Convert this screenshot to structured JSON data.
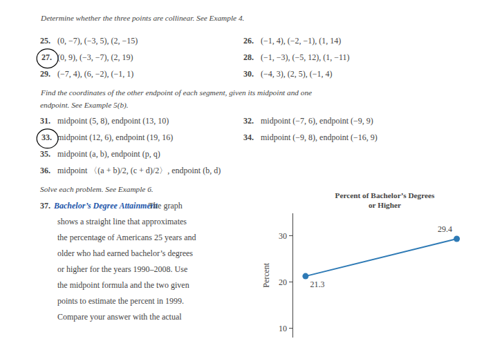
{
  "chart_data": {
    "type": "line",
    "title": "Percent of Bachelor’s Degrees\nor Higher",
    "ylabel": "Percent",
    "categories": [
      null,
      null
    ],
    "values": [
      21.3,
      29.4
    ],
    "color": "#2e7ab5",
    "marker": "circle",
    "ylim": [
      8,
      35
    ],
    "yticks": [
      10,
      20,
      30
    ],
    "grid": false,
    "data_labels": true,
    "tick_labels": "y",
    "annotations": [
      {
        "text": "Determine whether the three points are collinear. See Example 4."
      },
      {
        "text": "25."
      },
      {
        "text": "(0, −7), (−3, 5), (2, −15)"
      },
      {
        "text": "26."
      },
      {
        "text": "(−1, 4), (−2, −1), (1, 14)"
      },
      {
        "text": "27."
      },
      {
        "text": "(0, 9), (−3, −7), (2, 19)"
      },
      {
        "text": "28."
      },
      {
        "text": "(−1, −3), (−5, 12), (1, −11)"
      },
      {
        "text": "29."
      },
      {
        "text": "(−7, 4), (6, −2), (−1, 1)"
      },
      {
        "text": "30."
      },
      {
        "text": "(−4, 3), (2, 5), (−1, 4)"
      },
      {
        "text": "Find the coordinates of the other endpoint of each segment, given its midpoint and one"
      },
      {
        "text": "endpoint. See Example 5(b)."
      },
      {
        "text": "31."
      },
      {
        "text": "midpoint (5, 8), endpoint (13, 10)"
      },
      {
        "text": "32."
      },
      {
        "text": "midpoint (−7, 6), endpoint (−9, 9)"
      },
      {
        "text": "33."
      },
      {
        "text": "midpoint (12, 6), endpoint (19, 16)"
      },
      {
        "text": "34."
      },
      {
        "text": "midpoint (−9, 8), endpoint (−16, 9)"
      },
      {
        "text": "35."
      },
      {
        "text": "midpoint (a, b), endpoint (p, q)"
      },
      {
        "text": "36."
      },
      {
        "text": "midpoint 〈(a + b)/2, (c + d)/2〉, endpoint (b, d)"
      },
      {
        "text": "Solve each problem. See Example 6."
      },
      {
        "text": "37."
      },
      {
        "text": "Bachelor’s Degree Attainment",
        "color": "#2255aa"
      },
      {
        "text": "  The graph"
      },
      {
        "text": "shows a straight line that approximates"
      },
      {
        "text": "the percentage of Americans 25 years and"
      },
      {
        "text": "older who had earned bachelor’s degrees"
      },
      {
        "text": "or higher for the years 1990–2008. Use"
      },
      {
        "text": "the midpoint formula and the two given"
      },
      {
        "text": "points to estimate the percent in 1999."
      },
      {
        "text": "Compare your answer with the actual"
      }
    ]
  }
}
